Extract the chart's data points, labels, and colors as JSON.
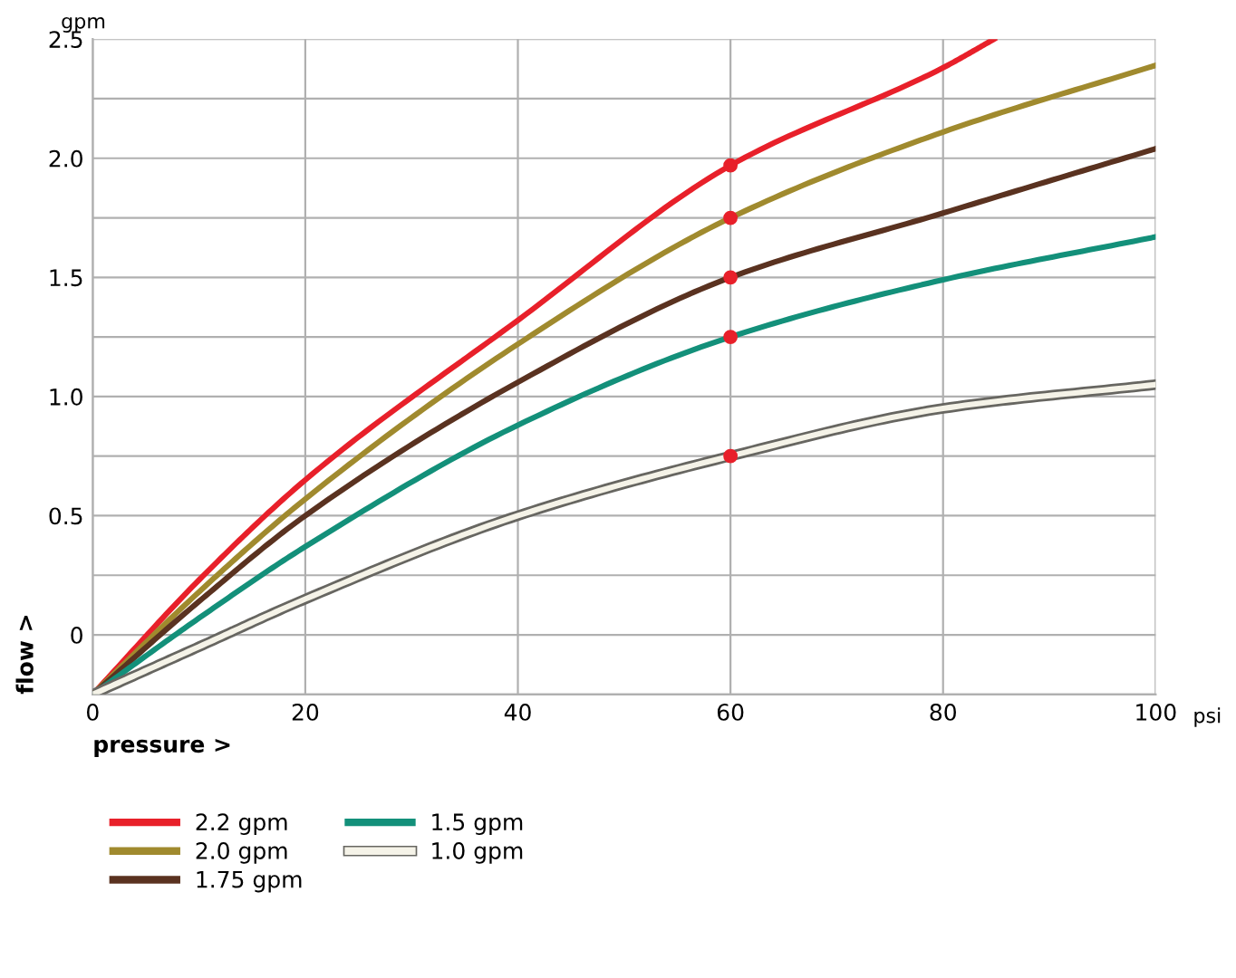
{
  "chart_data": {
    "type": "line",
    "xlabel": "pressure >",
    "ylabel": "flow >",
    "annotations": [
      "gpm",
      "psi"
    ],
    "series": [
      {
        "name": "2.2 gpm",
        "color": "#e8202a",
        "x": [
          0,
          10,
          20,
          40,
          60,
          80,
          84.8
        ],
        "values": [
          -0.25,
          0.23,
          0.65,
          1.32,
          1.97,
          2.38,
          2.5
        ]
      },
      {
        "name": "2.0 gpm",
        "color": "#a08a2e",
        "x": [
          0,
          10,
          20,
          40,
          60,
          80,
          100
        ],
        "values": [
          -0.25,
          0.18,
          0.57,
          1.22,
          1.75,
          2.11,
          2.39
        ]
      },
      {
        "name": "1.75 gpm",
        "color": "#5a3220",
        "x": [
          0,
          10,
          20,
          40,
          60,
          80,
          100
        ],
        "values": [
          -0.25,
          0.14,
          0.5,
          1.06,
          1.5,
          1.77,
          2.04
        ]
      },
      {
        "name": "1.5 gpm",
        "color": "#13907a",
        "x": [
          0,
          10,
          20,
          40,
          60,
          80,
          100
        ],
        "values": [
          -0.25,
          0.07,
          0.37,
          0.88,
          1.25,
          1.49,
          1.67
        ]
      },
      {
        "name": "1.0 gpm",
        "color": "#f5f3e8",
        "x": [
          0,
          10,
          20,
          40,
          60,
          80,
          100
        ],
        "values": [
          -0.25,
          -0.05,
          0.15,
          0.5,
          0.75,
          0.95,
          1.05
        ]
      },
      {
        "type": "scatter",
        "color": "#e8202a",
        "marker": "circle",
        "x": [
          60,
          60,
          60,
          60,
          60
        ],
        "values": [
          1.97,
          1.75,
          1.5,
          1.25,
          0.75
        ]
      }
    ],
    "xlim": [
      0,
      100
    ],
    "xticks": [
      0,
      20,
      40,
      60,
      80,
      100
    ],
    "ylim": [
      -0.25,
      2.5
    ],
    "yticks": [
      {
        "value": -0.25,
        "label": null
      },
      0,
      {
        "value": 0.25,
        "label": null
      },
      0.5,
      {
        "value": 0.75,
        "label": null
      },
      {
        "value": 1.0,
        "label": "1.0"
      },
      {
        "value": 1.25,
        "label": null
      },
      1.5,
      {
        "value": 1.75,
        "label": null
      },
      {
        "value": 2.0,
        "label": "2.0"
      },
      {
        "value": 2.25,
        "label": null
      },
      2.5
    ],
    "grid": true,
    "legend": "bottom"
  }
}
